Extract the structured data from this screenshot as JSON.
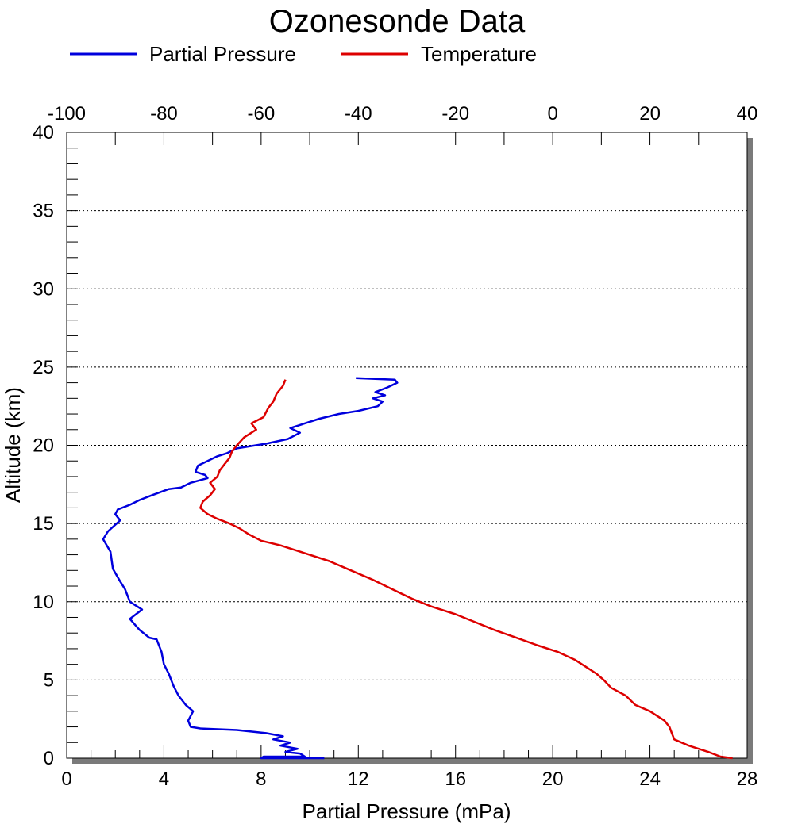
{
  "chart_data": {
    "type": "line",
    "title": "Ozonesonde Data",
    "xlabel": "Partial Pressure (mPa)",
    "ylabel": "Altitude (km)",
    "x_bottom": {
      "min": 0,
      "max": 28,
      "ticks": [
        0,
        4,
        8,
        12,
        16,
        20,
        24,
        28
      ]
    },
    "x_top": {
      "min": -100,
      "max": 40,
      "ticks": [
        -100,
        -80,
        -60,
        -40,
        -20,
        0,
        20,
        40
      ]
    },
    "y": {
      "min": 0,
      "max": 40,
      "ticks": [
        0,
        5,
        10,
        15,
        20,
        25,
        30,
        35,
        40
      ]
    },
    "grid": "horizontal dotted at major y ticks",
    "legend_position": "top",
    "series": [
      {
        "name": "Partial Pressure",
        "color": "#0000dd",
        "axis": "bottom",
        "points": [
          [
            10.6,
            0.0
          ],
          [
            8.0,
            0.0
          ],
          [
            8.1,
            0.1
          ],
          [
            9.8,
            0.1
          ],
          [
            9.6,
            0.3
          ],
          [
            9.0,
            0.4
          ],
          [
            9.5,
            0.6
          ],
          [
            8.8,
            0.8
          ],
          [
            9.2,
            1.0
          ],
          [
            8.5,
            1.2
          ],
          [
            8.9,
            1.4
          ],
          [
            8.2,
            1.6
          ],
          [
            7.0,
            1.8
          ],
          [
            5.5,
            1.9
          ],
          [
            5.1,
            2.0
          ],
          [
            5.0,
            2.4
          ],
          [
            5.2,
            3.0
          ],
          [
            4.9,
            3.4
          ],
          [
            4.6,
            4.0
          ],
          [
            4.4,
            4.6
          ],
          [
            4.2,
            5.4
          ],
          [
            4.0,
            6.0
          ],
          [
            3.9,
            6.8
          ],
          [
            3.7,
            7.6
          ],
          [
            3.4,
            7.7
          ],
          [
            3.0,
            8.2
          ],
          [
            2.6,
            8.9
          ],
          [
            3.1,
            9.5
          ],
          [
            2.6,
            10.0
          ],
          [
            2.4,
            10.8
          ],
          [
            2.2,
            11.3
          ],
          [
            1.9,
            12.1
          ],
          [
            1.8,
            13.2
          ],
          [
            1.5,
            14.0
          ],
          [
            1.7,
            14.5
          ],
          [
            2.2,
            15.2
          ],
          [
            2.0,
            15.6
          ],
          [
            2.1,
            15.9
          ],
          [
            2.6,
            16.2
          ],
          [
            3.0,
            16.5
          ],
          [
            3.5,
            16.8
          ],
          [
            4.2,
            17.2
          ],
          [
            4.7,
            17.3
          ],
          [
            5.1,
            17.6
          ],
          [
            5.8,
            17.9
          ],
          [
            5.7,
            18.1
          ],
          [
            5.3,
            18.3
          ],
          [
            5.4,
            18.7
          ],
          [
            5.8,
            19.0
          ],
          [
            6.2,
            19.3
          ],
          [
            6.6,
            19.5
          ],
          [
            7.0,
            19.8
          ],
          [
            8.2,
            20.1
          ],
          [
            9.1,
            20.4
          ],
          [
            9.6,
            20.8
          ],
          [
            9.2,
            21.1
          ],
          [
            10.4,
            21.7
          ],
          [
            11.2,
            22.0
          ],
          [
            12.0,
            22.2
          ],
          [
            12.8,
            22.5
          ],
          [
            13.0,
            22.8
          ],
          [
            12.6,
            23.0
          ],
          [
            13.1,
            23.2
          ],
          [
            12.7,
            23.4
          ],
          [
            13.2,
            23.7
          ],
          [
            13.6,
            24.0
          ],
          [
            13.5,
            24.2
          ],
          [
            11.9,
            24.3
          ]
        ]
      },
      {
        "name": "Temperature",
        "color": "#dd0000",
        "axis": "top",
        "points": [
          [
            37.0,
            0.0
          ],
          [
            34.5,
            0.1
          ],
          [
            32.0,
            0.4
          ],
          [
            28.0,
            0.8
          ],
          [
            25.0,
            1.2
          ],
          [
            24.5,
            1.6
          ],
          [
            24.0,
            2.0
          ],
          [
            23.0,
            2.4
          ],
          [
            20.0,
            3.0
          ],
          [
            17.0,
            3.4
          ],
          [
            15.0,
            4.0
          ],
          [
            12.0,
            4.5
          ],
          [
            10.5,
            5.0
          ],
          [
            9.0,
            5.4
          ],
          [
            7.0,
            5.8
          ],
          [
            4.5,
            6.3
          ],
          [
            1.0,
            6.8
          ],
          [
            -3.0,
            7.2
          ],
          [
            -7.5,
            7.7
          ],
          [
            -12.0,
            8.2
          ],
          [
            -16.0,
            8.7
          ],
          [
            -20.0,
            9.2
          ],
          [
            -25.0,
            9.7
          ],
          [
            -29.0,
            10.2
          ],
          [
            -33.0,
            10.8
          ],
          [
            -37.0,
            11.4
          ],
          [
            -41.5,
            12.0
          ],
          [
            -46.0,
            12.6
          ],
          [
            -51.0,
            13.1
          ],
          [
            -56.0,
            13.6
          ],
          [
            -60.0,
            13.9
          ],
          [
            -62.5,
            14.3
          ],
          [
            -64.5,
            14.7
          ],
          [
            -66.5,
            15.0
          ],
          [
            -69.0,
            15.3
          ],
          [
            -71.0,
            15.6
          ],
          [
            -72.5,
            16.0
          ],
          [
            -72.0,
            16.4
          ],
          [
            -70.5,
            16.8
          ],
          [
            -69.5,
            17.2
          ],
          [
            -70.5,
            17.6
          ],
          [
            -69.0,
            18.0
          ],
          [
            -68.5,
            18.4
          ],
          [
            -67.5,
            18.8
          ],
          [
            -66.5,
            19.2
          ],
          [
            -66.0,
            19.6
          ],
          [
            -65.0,
            20.0
          ],
          [
            -63.5,
            20.5
          ],
          [
            -61.0,
            21.0
          ],
          [
            -62.0,
            21.4
          ],
          [
            -59.5,
            21.8
          ],
          [
            -58.5,
            22.4
          ],
          [
            -57.5,
            22.8
          ],
          [
            -56.8,
            23.3
          ],
          [
            -55.5,
            23.8
          ],
          [
            -55.0,
            24.2
          ]
        ]
      }
    ]
  }
}
